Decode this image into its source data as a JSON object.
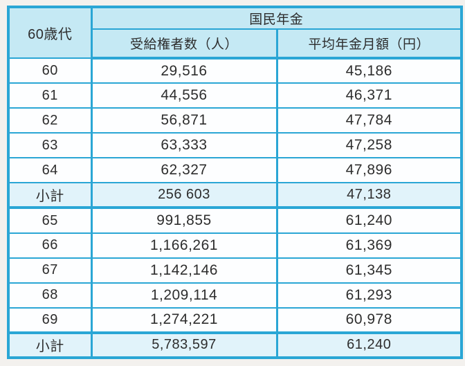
{
  "colors": {
    "border": "#2aa6d5",
    "header_bg": "#c5e9f4",
    "subtotal_bg": "#e1f3fa",
    "row_bg": "#fdfeff",
    "page_bg": "#f3f1ee",
    "text": "#2d2d2d"
  },
  "table": {
    "corner_header": "60歳代",
    "group_header": "国民年金",
    "col_headers": [
      "受給権者数（人）",
      "平均年金月額（円）"
    ],
    "rows": [
      {
        "type": "data",
        "thick_top": false,
        "label": "60",
        "recipients": "29,516",
        "amount": "45,186"
      },
      {
        "type": "data",
        "thick_top": false,
        "label": "61",
        "recipients": "44,556",
        "amount": "46,371"
      },
      {
        "type": "data",
        "thick_top": false,
        "label": "62",
        "recipients": "56,871",
        "amount": "47,784"
      },
      {
        "type": "data",
        "thick_top": false,
        "label": "63",
        "recipients": "63,333",
        "amount": "47,258"
      },
      {
        "type": "data",
        "thick_top": false,
        "label": "64",
        "recipients": "62,327",
        "amount": "47,896"
      },
      {
        "type": "subtotal",
        "thick_top": false,
        "label": "小計",
        "recipients": "256 603",
        "amount": "47,138"
      },
      {
        "type": "data",
        "thick_top": true,
        "label": "65",
        "recipients": "991,855",
        "amount": "61,240"
      },
      {
        "type": "data",
        "thick_top": false,
        "label": "66",
        "recipients": "1,166,261",
        "amount": "61,369"
      },
      {
        "type": "data",
        "thick_top": false,
        "label": "67",
        "recipients": "1,142,146",
        "amount": "61,345"
      },
      {
        "type": "data",
        "thick_top": false,
        "label": "68",
        "recipients": "1,209,114",
        "amount": "61,293"
      },
      {
        "type": "data",
        "thick_top": false,
        "label": "69",
        "recipients": "1,274,221",
        "amount": "60,978"
      },
      {
        "type": "subtotal",
        "thick_top": true,
        "label": "小計",
        "recipients": "5,783,597",
        "amount": "61,240"
      }
    ]
  },
  "chart_data": {
    "type": "table",
    "title": "国民年金",
    "columns": [
      "60歳代",
      "受給権者数（人）",
      "平均年金月額（円）"
    ],
    "rows": [
      [
        "60",
        "29,516",
        "45,186"
      ],
      [
        "61",
        "44,556",
        "46,371"
      ],
      [
        "62",
        "56,871",
        "47,784"
      ],
      [
        "63",
        "63,333",
        "47,258"
      ],
      [
        "64",
        "62,327",
        "47,896"
      ],
      [
        "小計",
        "256 603",
        "47,138"
      ],
      [
        "65",
        "991,855",
        "61,240"
      ],
      [
        "66",
        "1,166,261",
        "61,369"
      ],
      [
        "67",
        "1,142,146",
        "61,345"
      ],
      [
        "68",
        "1,209,114",
        "61,293"
      ],
      [
        "69",
        "1,274,221",
        "60,978"
      ],
      [
        "小計",
        "5,783,597",
        "61,240"
      ]
    ]
  }
}
